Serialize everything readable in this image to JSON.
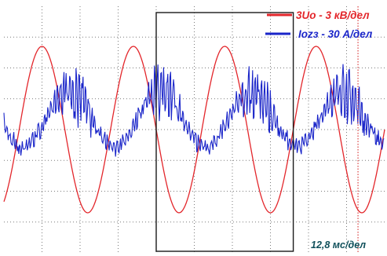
{
  "colors": {
    "background": "#ffffff",
    "grid": "#7a7a7a",
    "cursor": "#d21a1a",
    "voltage": "#e3262b",
    "current": "#1a25c9",
    "frame": "#1a1a1a",
    "scale_text": "#0f4f5a"
  },
  "legend": [
    {
      "label": "3Uo - 3 кВ/дел",
      "color": "#e3262b"
    },
    {
      "label": "Iozз - 30 А/дел",
      "color": "#1a25c9"
    }
  ],
  "time_scale_label": "12,8 мс/дел",
  "chart_data": {
    "type": "line",
    "title": "",
    "xlabel": "",
    "ylabel": "",
    "x_divisions": 10,
    "y_divisions": 8,
    "grid": "dotted",
    "legend_position": "top-right",
    "series": [
      {
        "name": "3Uo - 3 кВ/дел",
        "unit_per_division": "3 кВ",
        "waveform": "sine",
        "amplitude_div": 2.7,
        "offset_div": 0.0,
        "period_div": 2.4,
        "first_peak_div": 1.0
      },
      {
        "name": "Iozз - 30 А/дел",
        "unit_per_division": "30 А",
        "waveform": "sine with high-frequency spikes",
        "amplitude_div": 0.9,
        "spike_amplitude_div": 1.3,
        "offset_div": 0.35,
        "period_div": 2.4,
        "first_peak_div": 1.7
      }
    ],
    "cursor_x_div": 9.3,
    "highlight_box_div": {
      "x_start": 4.0,
      "x_end": 7.6
    }
  }
}
